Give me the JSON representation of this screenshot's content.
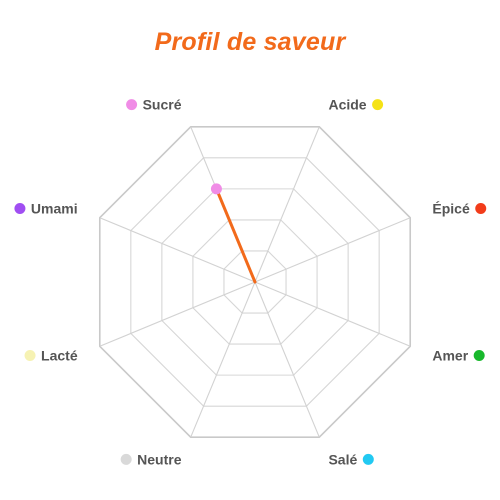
{
  "chart_data": {
    "type": "radar",
    "title": "Profil de saveur",
    "axes": [
      {
        "label": "Sucré",
        "color": "#f08ce6"
      },
      {
        "label": "Acide",
        "color": "#f5e216"
      },
      {
        "label": "Épicé",
        "color": "#f23c1a"
      },
      {
        "label": "Amer",
        "color": "#18b82c"
      },
      {
        "label": "Salé",
        "color": "#22c9f2"
      },
      {
        "label": "Neutre",
        "color": "#d9d9d9"
      },
      {
        "label": "Lacté",
        "color": "#f6f2b3"
      },
      {
        "label": "Umami",
        "color": "#a04ef2"
      }
    ],
    "series": [
      {
        "values": [
          3,
          0,
          0,
          0,
          0,
          0,
          0,
          0
        ],
        "color": "#f26a1b"
      }
    ],
    "range": [
      0,
      5
    ],
    "grid_levels": 5,
    "grid": true
  }
}
